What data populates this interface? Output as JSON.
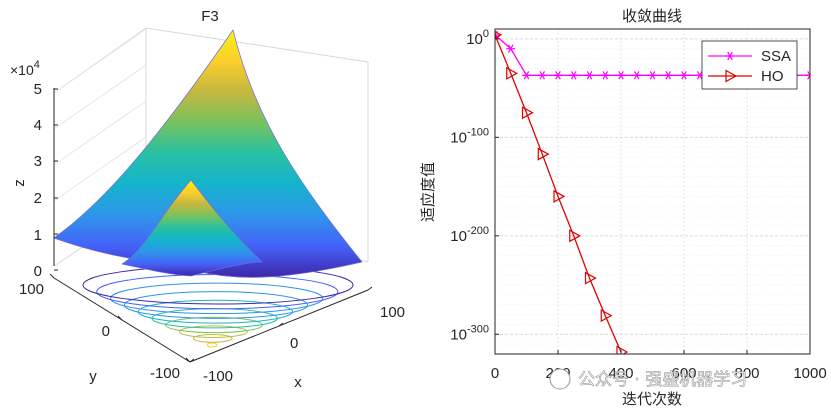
{
  "chart_data": [
    {
      "type": "surface3d",
      "title": "F3",
      "xlabel": "x",
      "ylabel": "y",
      "zlabel": "z",
      "z_multiplier": "×10",
      "z_exponent": "4",
      "x_ticks": [
        "-100",
        "0",
        "100"
      ],
      "y_ticks": [
        "-100",
        "0",
        "100"
      ],
      "z_ticks": [
        "0",
        "1",
        "2",
        "3",
        "4",
        "5"
      ],
      "xlim": [
        -100,
        100
      ],
      "ylim": [
        -100,
        100
      ],
      "zlim": [
        0,
        50000
      ],
      "colormap": [
        "#3e26a8",
        "#4561f9",
        "#2e95ea",
        "#16b3cd",
        "#27c0a4",
        "#76c25f",
        "#c4b83f",
        "#fbce2c",
        "#f9f014"
      ],
      "contour_levels": 10
    },
    {
      "type": "line",
      "title": "收敛曲线",
      "xlabel": "迭代次数",
      "ylabel": "适应度值",
      "yscale": "log",
      "xlim": [
        0,
        1000
      ],
      "ylim_exp": [
        -320,
        10
      ],
      "x_ticks": [
        "0",
        "200",
        "400",
        "600",
        "800",
        "1000"
      ],
      "y_ticks": [
        {
          "base": "10",
          "exp": "0",
          "value": 0
        },
        {
          "base": "10",
          "exp": "-100",
          "value": -100
        },
        {
          "base": "10",
          "exp": "-200",
          "value": -200
        },
        {
          "base": "10",
          "exp": "-300",
          "value": -300
        }
      ],
      "legend_position": "top-right",
      "series": [
        {
          "name": "SSA",
          "color": "#ff00ff",
          "marker": "asterisk",
          "x": [
            0,
            50,
            100,
            150,
            200,
            250,
            300,
            350,
            400,
            450,
            500,
            550,
            600,
            650,
            700,
            750,
            800,
            850,
            900,
            950,
            1000
          ],
          "log10_y": [
            4,
            -10,
            -37,
            -37,
            -37,
            -37,
            -37,
            -37,
            -37,
            -37,
            -37,
            -37,
            -37,
            -37,
            -37,
            -37,
            -37,
            -37,
            -37,
            -37,
            -37
          ]
        },
        {
          "name": "HO",
          "color": "#e00000",
          "marker": "triangle-right",
          "x": [
            0,
            50,
            100,
            150,
            200,
            250,
            300,
            350,
            400
          ],
          "log10_y": [
            4,
            -35,
            -75,
            -117,
            -160,
            -200,
            -243,
            -281,
            -318
          ]
        }
      ]
    }
  ],
  "watermark": "公众号 · 强盛机器学习"
}
